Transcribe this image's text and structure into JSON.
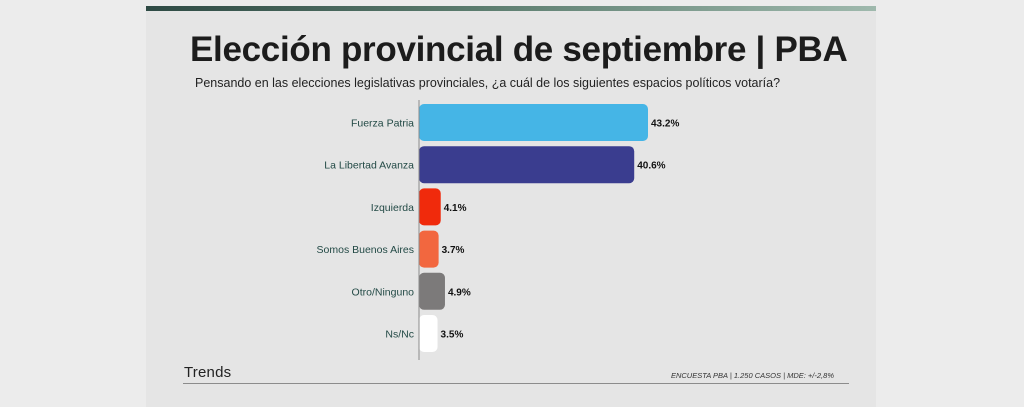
{
  "header": {
    "title": "Elección provincial de septiembre | PBA",
    "subtitle": "Pensando en las elecciones legislativas provinciales, ¿a cuál de los siguientes espacios políticos votaría?"
  },
  "footer": {
    "brand": "Trends",
    "note": "ENCUESTA PBA | 1.250 CASOS | MDE: +/-2,8%"
  },
  "chart_data": {
    "type": "bar",
    "orientation": "horizontal",
    "categories": [
      "Fuerza Patria",
      "La Libertad Avanza",
      "Izquierda",
      "Somos Buenos Aires",
      "Otro/Ninguno",
      "Ns/Nc"
    ],
    "values": [
      43.2,
      40.6,
      4.1,
      3.7,
      4.9,
      3.5
    ],
    "value_labels": [
      "43.2%",
      "40.6%",
      "4.1%",
      "3.7%",
      "4.9%",
      "3.5%"
    ],
    "colors": [
      "#45b5e6",
      "#3a3d8f",
      "#f02a0c",
      "#f2673f",
      "#7c7a7a",
      "#ffffff"
    ],
    "xlim": [
      0,
      43.2
    ],
    "grid": false,
    "legend": "none"
  }
}
